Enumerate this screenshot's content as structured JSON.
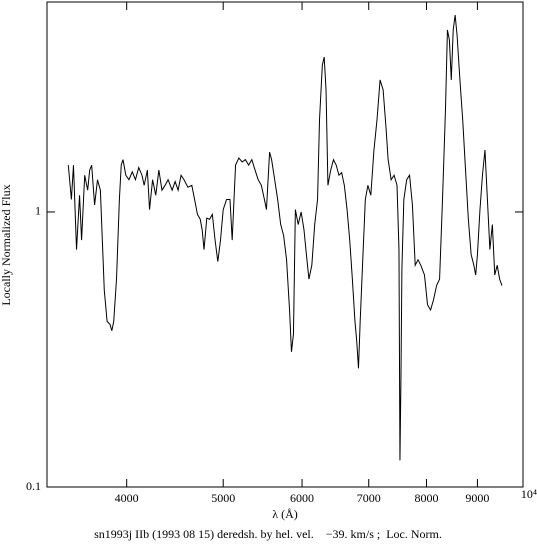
{
  "chart_data": {
    "type": "line",
    "x_label": "λ (Å)",
    "y_label": "Locally Normalized Flux",
    "caption": "sn1993j IIb (1993 08 15) deredsh. by hel. vel.    −39. km/s ;  Loc. Norm.",
    "xscale": "log",
    "yscale": "log",
    "xlim": [
      3327,
      10000
    ],
    "ylim": [
      0.1,
      5.8
    ],
    "xticks": [
      4000,
      5000,
      6000,
      7000,
      8000,
      9000,
      {
        "value": 10000,
        "label": "10⁴"
      }
    ],
    "yticks": [
      0.1,
      1
    ],
    "color": "#000000",
    "x": [
      3495,
      3520,
      3537,
      3562,
      3587,
      3604,
      3630,
      3655,
      3672,
      3689,
      3714,
      3739,
      3764,
      3781,
      3798,
      3823,
      3849,
      3865,
      3882,
      3907,
      3933,
      3950,
      3966,
      3992,
      4021,
      4052,
      4082,
      4113,
      4144,
      4165,
      4196,
      4217,
      4247,
      4278,
      4309,
      4340,
      4371,
      4402,
      4443,
      4474,
      4505,
      4536,
      4567,
      4608,
      4650,
      4680,
      4711,
      4742,
      4763,
      4783,
      4814,
      4845,
      4876,
      4907,
      4938,
      4969,
      5000,
      5039,
      5079,
      5105,
      5145,
      5184,
      5224,
      5263,
      5303,
      5342,
      5382,
      5421,
      5461,
      5500,
      5526,
      5566,
      5592,
      5632,
      5671,
      5711,
      5750,
      5789,
      5829,
      5855,
      5882,
      5908,
      5947,
      5987,
      6027,
      6068,
      6096,
      6137,
      6178,
      6219,
      6247,
      6288,
      6315,
      6342,
      6370,
      6411,
      6452,
      6493,
      6534,
      6575,
      6616,
      6658,
      6699,
      6740,
      6781,
      6808,
      6836,
      6863,
      6904,
      6945,
      6986,
      7034,
      7085,
      7135,
      7186,
      7237,
      7288,
      7321,
      7372,
      7423,
      7473,
      7507,
      7524,
      7541,
      7558,
      7592,
      7642,
      7693,
      7744,
      7794,
      7845,
      7896,
      7963,
      8019,
      8076,
      8132,
      8189,
      8246,
      8302,
      8359,
      8397,
      8435,
      8472,
      8510,
      8548,
      8586,
      8643,
      8699,
      8756,
      8813,
      8870,
      8926,
      8964,
      9000,
      9053,
      9105,
      9158,
      9210,
      9263,
      9316,
      9368,
      9421,
      9474,
      9526
    ],
    "values": [
      1.48,
      1.11,
      1.48,
      0.73,
      1.15,
      0.79,
      1.36,
      1.2,
      1.42,
      1.48,
      1.06,
      1.31,
      1.2,
      0.79,
      0.52,
      0.4,
      0.39,
      0.37,
      0.4,
      0.57,
      1.11,
      1.48,
      1.55,
      1.36,
      1.31,
      1.4,
      1.31,
      1.45,
      1.36,
      1.25,
      1.42,
      1.02,
      1.31,
      1.15,
      1.42,
      1.2,
      1.25,
      1.31,
      1.2,
      1.29,
      1.2,
      1.36,
      1.31,
      1.23,
      1.25,
      1.11,
      0.98,
      0.94,
      0.86,
      0.73,
      0.95,
      0.94,
      0.98,
      0.79,
      0.66,
      0.79,
      1.02,
      1.11,
      1.11,
      0.79,
      1.48,
      1.57,
      1.52,
      1.55,
      1.48,
      1.55,
      1.42,
      1.31,
      1.25,
      1.11,
      1.02,
      1.65,
      1.55,
      1.31,
      1.11,
      0.9,
      0.82,
      0.67,
      0.44,
      0.31,
      0.36,
      1.02,
      0.9,
      1.0,
      0.86,
      0.67,
      0.57,
      0.64,
      0.9,
      1.11,
      2.16,
      3.42,
      3.66,
      2.78,
      1.25,
      1.42,
      1.55,
      1.48,
      1.36,
      1.39,
      1.25,
      1.02,
      0.79,
      0.57,
      0.4,
      0.34,
      0.27,
      0.4,
      0.67,
      1.11,
      1.25,
      1.15,
      1.68,
      2.16,
      3.02,
      2.78,
      1.99,
      1.55,
      1.31,
      1.36,
      1.25,
      0.73,
      0.125,
      0.245,
      0.62,
      1.11,
      1.31,
      1.36,
      1.06,
      0.64,
      0.67,
      0.64,
      0.59,
      0.46,
      0.44,
      0.48,
      0.54,
      0.57,
      1.11,
      2.35,
      4.59,
      4.22,
      3.02,
      4.59,
      5.2,
      4.4,
      3.02,
      2.16,
      1.42,
      0.94,
      0.7,
      0.64,
      0.59,
      0.7,
      1.02,
      1.36,
      1.68,
      1.11,
      0.73,
      0.9,
      0.59,
      0.64,
      0.57,
      0.54
    ]
  }
}
